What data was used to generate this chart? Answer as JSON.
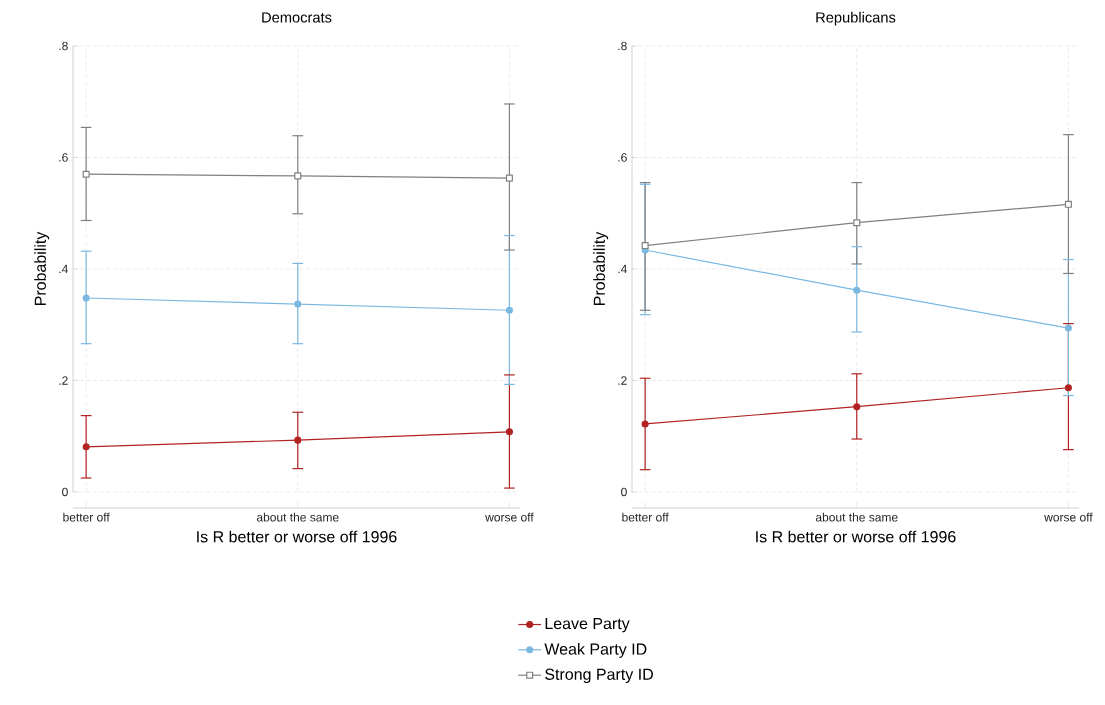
{
  "chart_data": [
    {
      "type": "line",
      "title": "Democrats",
      "xlabel": "Is R better or worse off 1996",
      "ylabel": "Probability",
      "categories": [
        "better off",
        "about the same",
        "worse off"
      ],
      "ylim": [
        0,
        0.8
      ],
      "yticks": [
        0,
        {
          "value": 0.2,
          "label": ".2"
        },
        {
          "value": 0.4,
          "label": ".4"
        },
        {
          "value": 0.6,
          "label": ".6"
        },
        {
          "value": 0.8,
          "label": ".8"
        }
      ],
      "grid": true,
      "legend": "bottom",
      "series": [
        {
          "name": "Leave Party",
          "color": "#b22222",
          "marker": "circle",
          "values": [
            0.081,
            0.093,
            0.108
          ],
          "errors": [
            [
              0.025,
              0.137
            ],
            [
              0.042,
              0.143
            ],
            [
              0.007,
              0.21
            ]
          ]
        },
        {
          "name": "Weak Party ID",
          "color": "#7ab8e0",
          "marker": "circle",
          "values": [
            0.348,
            0.337,
            0.326
          ],
          "errors": [
            [
              0.266,
              0.432
            ],
            [
              0.266,
              0.41
            ],
            [
              0.193,
              0.46
            ]
          ]
        },
        {
          "name": "Strong Party ID",
          "color": "#808080",
          "marker": "square",
          "values": [
            0.57,
            0.567,
            0.563
          ],
          "errors": [
            [
              0.487,
              0.654
            ],
            [
              0.499,
              0.639
            ],
            [
              0.434,
              0.696
            ]
          ]
        }
      ]
    },
    {
      "type": "line",
      "title": "Republicans",
      "xlabel": "Is R better or worse off 1996",
      "ylabel": "Probability",
      "categories": [
        "better off",
        "about the same",
        "worse off"
      ],
      "ylim": [
        0,
        0.8
      ],
      "yticks": [
        0,
        {
          "value": 0.2,
          "label": ".2"
        },
        {
          "value": 0.4,
          "label": ".4"
        },
        {
          "value": 0.6,
          "label": ".6"
        },
        {
          "value": 0.8,
          "label": ".8"
        }
      ],
      "grid": true,
      "series": [
        {
          "color": "#b22222",
          "marker": "circle",
          "values": [
            0.122,
            0.153,
            0.187
          ],
          "errors": [
            [
              0.04,
              0.204
            ],
            [
              0.095,
              0.212
            ],
            [
              0.076,
              0.302
            ]
          ]
        },
        {
          "color": "#7ab8e0",
          "marker": "circle",
          "values": [
            0.434,
            0.362,
            0.294
          ],
          "errors": [
            [
              0.318,
              0.552
            ],
            [
              0.287,
              0.44
            ],
            [
              0.173,
              0.417
            ]
          ]
        },
        {
          "color": "#808080",
          "marker": "square",
          "values": [
            0.442,
            0.483,
            0.516
          ],
          "errors": [
            [
              0.326,
              0.555
            ],
            [
              0.409,
              0.555
            ],
            [
              0.392,
              0.641
            ]
          ]
        }
      ]
    }
  ]
}
